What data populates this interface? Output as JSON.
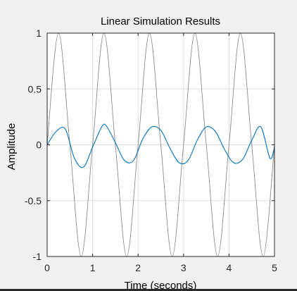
{
  "chart_data": {
    "type": "line",
    "title": "Linear Simulation Results",
    "xlabel": "Time (seconds)",
    "ylabel": "Amplitude",
    "xlim": [
      0,
      5
    ],
    "ylim": [
      -1,
      1
    ],
    "xticks": [
      0,
      1,
      2,
      3,
      4,
      5
    ],
    "xtick_labels": [
      "0",
      "1",
      "2",
      "3",
      "4",
      "5"
    ],
    "yticks": [
      1,
      0.5,
      0,
      -0.5,
      -1
    ],
    "ytick_labels": [
      "1",
      "0.5",
      "0",
      "-0.5",
      "-1"
    ],
    "grid": true,
    "series": [
      {
        "color": "#8c8c8c",
        "x": [
          0,
          0.25,
          0.5,
          0.75,
          1.0,
          1.25,
          1.5,
          1.75,
          2.0,
          2.25,
          2.5,
          2.75,
          3.0,
          3.25,
          3.5,
          3.75,
          4.0,
          4.25,
          4.5,
          4.75,
          5.0
        ],
        "y": [
          0,
          1,
          0,
          -1,
          0,
          1,
          0,
          -1,
          0,
          1,
          0,
          -1,
          0,
          1,
          0,
          -1,
          0,
          1,
          0,
          -1,
          0
        ]
      },
      {
        "color": "#0072bd",
        "x": [
          0,
          0.2,
          0.4,
          0.6,
          0.8,
          1.0,
          1.2,
          1.3,
          1.5,
          1.7,
          1.9,
          2.1,
          2.3,
          2.5,
          2.7,
          2.9,
          3.1,
          3.3,
          3.5,
          3.7,
          3.9,
          4.1,
          4.3,
          4.5,
          4.7,
          4.9,
          5.0
        ],
        "y": [
          0,
          0.12,
          0.14,
          -0.12,
          -0.2,
          -0.02,
          0.16,
          0.17,
          0.02,
          -0.14,
          -0.14,
          0.05,
          0.16,
          0.13,
          -0.03,
          -0.16,
          -0.14,
          0.04,
          0.16,
          0.12,
          -0.04,
          -0.16,
          -0.13,
          0.04,
          0.16,
          -0.12,
          -0.02
        ]
      }
    ]
  }
}
